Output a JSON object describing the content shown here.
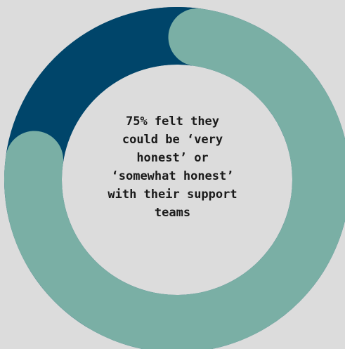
{
  "chart_data": {
    "type": "pie",
    "variant": "donut",
    "slices": [
      {
        "value": 75,
        "color": "#7aafa5"
      },
      {
        "value": 25,
        "color": "#00456a"
      }
    ],
    "center_text": "75% felt they\ncould be ‘very\nhonest’ or\n‘somewhat honest’\nwith their support\nteams"
  },
  "colors": {
    "background": "#dcdcdc",
    "highlight": "#7aafa5",
    "remainder": "#00456a",
    "text": "#1a1a1a"
  }
}
